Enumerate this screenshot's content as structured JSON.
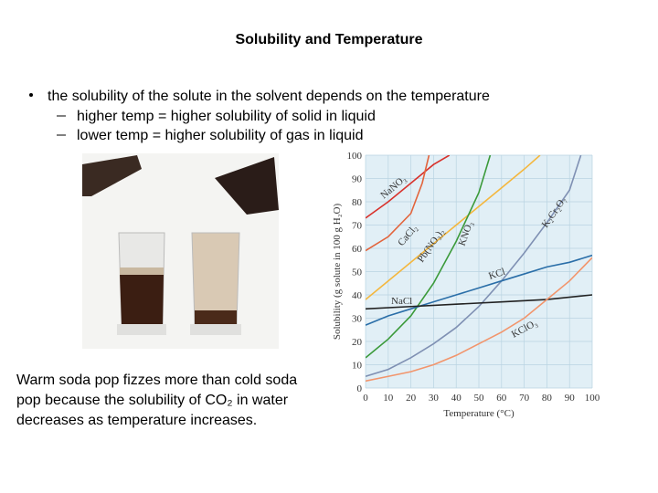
{
  "title": "Solubility and Temperature",
  "bullet": {
    "text": "the solubility of the solute in the solvent depends on the temperature",
    "sub": [
      "higher temp = higher solubility of solid in liquid",
      "lower temp = higher solubility of gas in liquid"
    ]
  },
  "caption": [
    "Warm soda pop fizzes more than cold soda",
    "pop because the solubility of CO₂ in water",
    "decreases as temperature increases."
  ],
  "chart_data": {
    "type": "line",
    "xlabel": "Temperature (°C)",
    "ylabel": "Solubility (g solute in 100 g H₂O)",
    "xlim": [
      0,
      100
    ],
    "ylim": [
      0,
      100
    ],
    "xticks": [
      0,
      10,
      20,
      30,
      40,
      50,
      60,
      70,
      80,
      90,
      100
    ],
    "yticks": [
      0,
      10,
      20,
      30,
      40,
      50,
      60,
      70,
      80,
      90,
      100
    ],
    "grid": true,
    "series": [
      {
        "name": "NaNO₃",
        "color": "#d8322c",
        "x": [
          0,
          10,
          20,
          30,
          37
        ],
        "values": [
          73,
          80,
          88,
          96,
          100
        ]
      },
      {
        "name": "CaCl₂",
        "color": "#e2643c",
        "x": [
          0,
          10,
          20,
          25,
          28
        ],
        "values": [
          59,
          65,
          75,
          88,
          100
        ]
      },
      {
        "name": "Pb(NO₃)₂",
        "color": "#f4b73e",
        "x": [
          0,
          10,
          20,
          30,
          40,
          50,
          60,
          70,
          77
        ],
        "values": [
          38,
          46,
          54,
          62,
          70,
          78,
          86,
          94,
          100
        ]
      },
      {
        "name": "KNO₃",
        "color": "#3b9a3a",
        "x": [
          0,
          10,
          20,
          30,
          40,
          50,
          55
        ],
        "values": [
          13,
          21,
          31,
          45,
          63,
          84,
          100
        ]
      },
      {
        "name": "K₂Cr₂O₇",
        "color": "#7f90b3",
        "x": [
          0,
          10,
          20,
          30,
          40,
          50,
          60,
          70,
          80,
          90,
          95
        ],
        "values": [
          5,
          8,
          13,
          19,
          26,
          35,
          46,
          58,
          71,
          85,
          100
        ]
      },
      {
        "name": "KCl",
        "color": "#2a6ea8",
        "x": [
          0,
          10,
          20,
          30,
          40,
          50,
          60,
          70,
          80,
          90,
          100
        ],
        "values": [
          27,
          31,
          34,
          37,
          40,
          43,
          46,
          49,
          52,
          54,
          57
        ]
      },
      {
        "name": "NaCl",
        "color": "#222222",
        "x": [
          0,
          20,
          40,
          60,
          80,
          100
        ],
        "values": [
          34,
          35,
          36,
          37,
          38,
          40
        ]
      },
      {
        "name": "KClO₃",
        "color": "#f2956c",
        "x": [
          0,
          10,
          20,
          30,
          40,
          50,
          60,
          70,
          80,
          90,
          100
        ],
        "values": [
          3,
          5,
          7,
          10,
          14,
          19,
          24,
          30,
          38,
          46,
          56
        ]
      }
    ]
  }
}
